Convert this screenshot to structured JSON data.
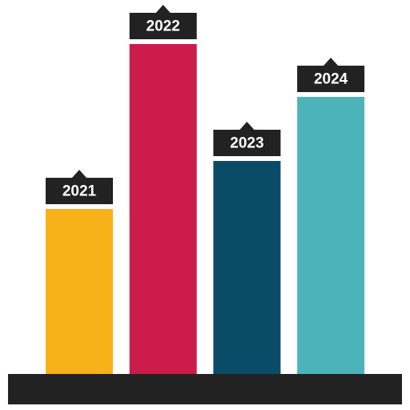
{
  "chart_data": {
    "type": "bar",
    "categories": [
      "2021",
      "2022",
      "2023",
      "2024"
    ],
    "values": [
      206,
      412,
      266,
      346
    ],
    "colors": [
      "#f7b219",
      "#cb1c4a",
      "#0a4c67",
      "#4db3bb"
    ],
    "ylim": [
      0,
      450
    ]
  }
}
